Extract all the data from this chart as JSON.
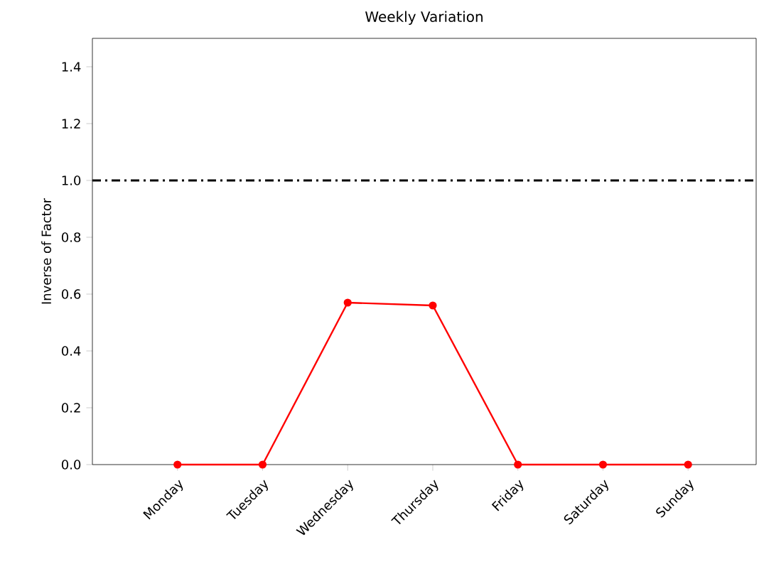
{
  "chart_data": {
    "type": "line",
    "title": "Weekly Variation",
    "ylabel": "Inverse of Factor",
    "categories": [
      "Monday",
      "Tuesday",
      "Wednesday",
      "Thursday",
      "Friday",
      "Saturday",
      "Sunday"
    ],
    "series": [
      {
        "color": "#ff0000",
        "values": [
          0,
          0,
          0.57,
          0.56,
          0,
          0,
          0
        ]
      }
    ],
    "ylim": [
      0,
      1.5
    ],
    "yticks": [
      {
        "value": 0,
        "label": "0.0"
      },
      0.2,
      0.4,
      0.6,
      0.8,
      {
        "value": 1,
        "label": "1.0"
      },
      1.2,
      1.4
    ],
    "marker": "circle",
    "line_style": "solid",
    "ref_lines": [
      {
        "axis": "y",
        "value": 1.0,
        "color": "#000000",
        "line_style": "dashdot"
      }
    ]
  }
}
